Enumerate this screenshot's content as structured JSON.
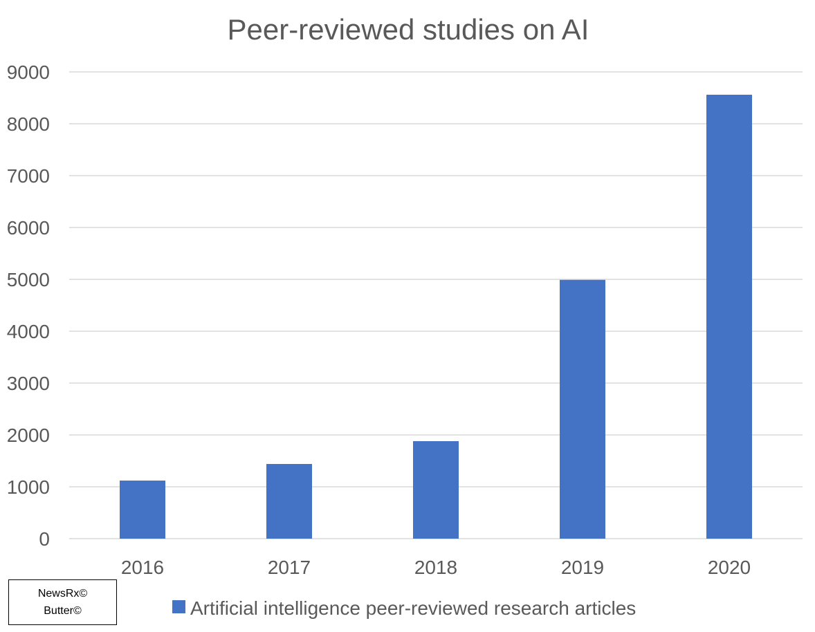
{
  "chart_data": {
    "type": "bar",
    "title": "Peer-reviewed studies on AI",
    "xlabel": "",
    "ylabel": "",
    "categories": [
      "2016",
      "2017",
      "2018",
      "2019",
      "2020"
    ],
    "series": [
      {
        "name": "Artificial intelligence peer-reviewed research articles",
        "values": [
          1120,
          1440,
          1880,
          4990,
          8560
        ],
        "color": "#4472C4"
      }
    ],
    "ylim": [
      0,
      9000
    ],
    "yticks": [
      "0",
      "1000",
      "2000",
      "3000",
      "4000",
      "5000",
      "6000",
      "7000",
      "8000",
      "9000"
    ],
    "grid": true,
    "legend_position": "bottom"
  },
  "watermark": {
    "line1": "NewsRx©",
    "line2": "Butter©"
  },
  "colors": {
    "bar": "#4472C4",
    "grid": "#D9D9D9",
    "text": "#595959"
  }
}
